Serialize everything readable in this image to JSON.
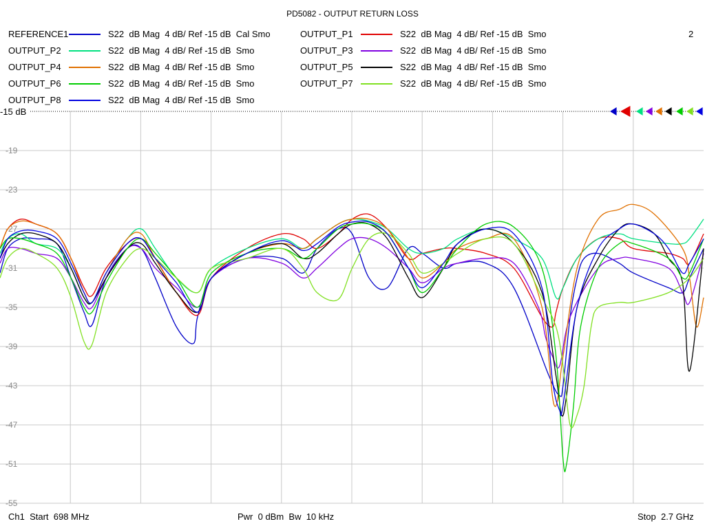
{
  "chart_data": {
    "type": "line",
    "title": "PD5082 - OUTPUT RETURN LOSS",
    "channel_number": "2",
    "ref_label": "-15 dB",
    "y_ticks": [
      "-15",
      "-19",
      "-23",
      "-27",
      "-31",
      "-35",
      "-39",
      "-43",
      "-47",
      "-51",
      "-55"
    ],
    "ylim": [
      -55,
      -15
    ],
    "xlim": [
      698,
      2700
    ],
    "x_unit": "MHz",
    "grid": true,
    "footer": {
      "start": "Ch1  Start  698 MHz",
      "mid": "Pwr  0 dBm  Bw  10 kHz",
      "stop": "Stop  2.7 GHz"
    },
    "series": [
      {
        "name": "REFERENCE1",
        "desc": "S22  dB Mag  4 dB/ Ref -15 dB  Cal Smo",
        "color": "#0000c8",
        "x": [
          698,
          720,
          757,
          800,
          860,
          900,
          937,
          960,
          1000,
          1060,
          1100,
          1140,
          1200,
          1248,
          1260,
          1300,
          1400,
          1500,
          1560,
          1600,
          1660,
          1700,
          1748,
          1800,
          1860,
          1900,
          1960,
          2000,
          2080,
          2160,
          2260,
          2290,
          2300,
          2320,
          2340,
          2360,
          2400,
          2460,
          2500,
          2600,
          2640,
          2660,
          2700
        ],
        "y": [
          -31.5,
          -29,
          -28,
          -28,
          -28.5,
          -32,
          -35.5,
          -36.8,
          -32,
          -29,
          -29,
          -32,
          -37,
          -38.7,
          -36,
          -32,
          -30,
          -30,
          -31.5,
          -29,
          -27,
          -27.5,
          -32,
          -33,
          -29,
          -29.5,
          -31,
          -30.5,
          -30.5,
          -33,
          -42,
          -44,
          -43,
          -36,
          -32,
          -30,
          -29.5,
          -30.5,
          -31.5,
          -33,
          -33.5,
          -32,
          -29
        ]
      },
      {
        "name": "OUTPUT_P1",
        "desc": "S22  dB Mag  4 dB/ Ref -15 dB  Smo",
        "color": "#e00000",
        "x": [
          698,
          720,
          757,
          800,
          860,
          900,
          937,
          960,
          1000,
          1060,
          1100,
          1140,
          1200,
          1260,
          1300,
          1400,
          1500,
          1560,
          1600,
          1660,
          1700,
          1748,
          1800,
          1860,
          1900,
          1960,
          2000,
          2080,
          2160,
          2240,
          2270,
          2280,
          2300,
          2340,
          2400,
          2460,
          2500,
          2600,
          2640,
          2660,
          2700
        ],
        "y": [
          -29,
          -27,
          -26,
          -26.5,
          -27.5,
          -30,
          -33,
          -33.8,
          -31,
          -28.5,
          -28,
          -30,
          -33.5,
          -35.8,
          -32,
          -29,
          -27.5,
          -28,
          -29,
          -27.5,
          -26,
          -25.5,
          -27,
          -30,
          -29.5,
          -29,
          -29,
          -29.5,
          -31,
          -36,
          -37,
          -35.5,
          -33,
          -30,
          -28,
          -28,
          -29,
          -29.5,
          -30,
          -30.5,
          -27.5
        ]
      },
      {
        "name": "OUTPUT_P2",
        "desc": "S22  dB Mag  4 dB/ Ref -15 dB  Smo",
        "color": "#00e080",
        "x": [
          698,
          720,
          757,
          800,
          860,
          900,
          937,
          960,
          1000,
          1060,
          1100,
          1140,
          1200,
          1260,
          1300,
          1400,
          1500,
          1560,
          1600,
          1660,
          1700,
          1748,
          1800,
          1860,
          1900,
          1960,
          2000,
          2080,
          2160,
          2240,
          2280,
          2300,
          2340,
          2400,
          2460,
          2500,
          2600,
          2640,
          2660,
          2700
        ],
        "y": [
          -29.5,
          -28,
          -27.5,
          -28.5,
          -29,
          -31,
          -34,
          -34.5,
          -31.5,
          -28,
          -27,
          -29,
          -32,
          -33.5,
          -31,
          -29,
          -28,
          -29,
          -28,
          -26.5,
          -26,
          -26.2,
          -27,
          -29,
          -29.5,
          -29,
          -28,
          -27,
          -28,
          -30,
          -34,
          -33,
          -30,
          -28,
          -27.5,
          -28,
          -28.5,
          -28.5,
          -28,
          -26
        ]
      },
      {
        "name": "OUTPUT_P3",
        "desc": "S22  dB Mag  4 dB/ Ref -15 dB  Smo",
        "color": "#8000e0",
        "x": [
          698,
          720,
          757,
          800,
          860,
          900,
          937,
          960,
          1000,
          1060,
          1100,
          1140,
          1200,
          1260,
          1300,
          1400,
          1500,
          1560,
          1600,
          1660,
          1700,
          1748,
          1800,
          1860,
          1900,
          1960,
          2000,
          2080,
          2160,
          2230,
          2250,
          2270,
          2290,
          2320,
          2400,
          2460,
          2500,
          2600,
          2640,
          2660,
          2700
        ],
        "y": [
          -30.5,
          -29,
          -29,
          -29.5,
          -30,
          -32,
          -34.5,
          -35,
          -32,
          -29,
          -29,
          -31,
          -33,
          -35,
          -32,
          -30,
          -30.5,
          -32,
          -31,
          -29,
          -28,
          -28,
          -29,
          -31,
          -32.5,
          -31,
          -30.5,
          -30,
          -30.5,
          -35,
          -38,
          -40,
          -41,
          -36,
          -31,
          -30,
          -30,
          -31,
          -33.5,
          -34.5,
          -29.5
        ]
      },
      {
        "name": "OUTPUT_P4",
        "desc": "S22  dB Mag  4 dB/ Ref -15 dB  Smo",
        "color": "#e07000",
        "x": [
          698,
          720,
          757,
          800,
          860,
          900,
          937,
          960,
          1000,
          1060,
          1100,
          1140,
          1200,
          1260,
          1300,
          1400,
          1500,
          1560,
          1600,
          1660,
          1700,
          1748,
          1800,
          1860,
          1900,
          1960,
          2000,
          2080,
          2160,
          2240,
          2275,
          2300,
          2340,
          2400,
          2460,
          2500,
          2560,
          2640,
          2660,
          2680,
          2700
        ],
        "y": [
          -29,
          -27,
          -26.2,
          -26.5,
          -27.5,
          -30,
          -33.5,
          -34.5,
          -31.5,
          -28,
          -27.5,
          -30,
          -33.5,
          -35.5,
          -32,
          -29.5,
          -28.5,
          -29,
          -28,
          -26.5,
          -26,
          -26,
          -27,
          -30,
          -32,
          -30.5,
          -29,
          -28,
          -28,
          -35,
          -45,
          -40,
          -31,
          -26,
          -25,
          -24.5,
          -25.5,
          -29,
          -32,
          -37,
          -34
        ]
      },
      {
        "name": "OUTPUT_P5",
        "desc": "S22  dB Mag  4 dB/ Ref -15 dB  Smo",
        "color": "#000000",
        "x": [
          698,
          720,
          757,
          800,
          860,
          900,
          937,
          960,
          1000,
          1060,
          1100,
          1140,
          1200,
          1260,
          1300,
          1400,
          1500,
          1560,
          1600,
          1660,
          1700,
          1748,
          1800,
          1860,
          1900,
          1960,
          2000,
          2080,
          2160,
          2240,
          2280,
          2296,
          2310,
          2340,
          2400,
          2460,
          2500,
          2560,
          2600,
          2640,
          2660,
          2700
        ],
        "y": [
          -30,
          -28.5,
          -27.5,
          -27.5,
          -28.5,
          -31,
          -34,
          -34.5,
          -32,
          -29,
          -28.5,
          -30.5,
          -33.5,
          -35.5,
          -32,
          -29.5,
          -28.5,
          -30,
          -29.5,
          -27.5,
          -26.5,
          -26.5,
          -28,
          -32,
          -34,
          -31,
          -28.5,
          -27,
          -28.5,
          -33.5,
          -42,
          -46,
          -44,
          -35,
          -30,
          -27,
          -26.5,
          -27.5,
          -30,
          -32.5,
          -41.5,
          -29
        ]
      },
      {
        "name": "OUTPUT_P6",
        "desc": "S22  dB Mag  4 dB/ Ref -15 dB  Smo",
        "color": "#00cc00",
        "x": [
          698,
          720,
          757,
          800,
          860,
          900,
          937,
          960,
          1000,
          1060,
          1100,
          1140,
          1200,
          1260,
          1300,
          1400,
          1500,
          1560,
          1600,
          1660,
          1700,
          1748,
          1800,
          1860,
          1900,
          1960,
          2000,
          2080,
          2160,
          2240,
          2280,
          2300,
          2310,
          2330,
          2350,
          2400,
          2460,
          2500,
          2600,
          2640,
          2660,
          2700
        ],
        "y": [
          -29,
          -28,
          -28,
          -28.5,
          -29.5,
          -32,
          -35,
          -35.5,
          -32.5,
          -29,
          -28,
          -29.5,
          -32,
          -35,
          -31.5,
          -29.5,
          -29,
          -30,
          -29,
          -27,
          -26.5,
          -26.5,
          -27.5,
          -31,
          -33.5,
          -31,
          -29,
          -26.5,
          -26.8,
          -31,
          -40,
          -50.5,
          -51,
          -45,
          -37,
          -31,
          -28.5,
          -28.5,
          -30,
          -32,
          -31.5,
          -28
        ]
      },
      {
        "name": "OUTPUT_P7",
        "desc": "S22  dB Mag  4 dB/ Ref -15 dB  Smo",
        "color": "#80e020",
        "x": [
          698,
          720,
          757,
          800,
          860,
          900,
          937,
          960,
          1000,
          1060,
          1100,
          1140,
          1200,
          1260,
          1300,
          1400,
          1500,
          1560,
          1600,
          1660,
          1700,
          1748,
          1800,
          1860,
          1900,
          1960,
          2000,
          2080,
          2160,
          2240,
          2280,
          2300,
          2320,
          2340,
          2360,
          2380,
          2400,
          2460,
          2500,
          2600,
          2660,
          2700
        ],
        "y": [
          -32,
          -30,
          -29,
          -29.5,
          -31,
          -34,
          -38.5,
          -38.8,
          -33.5,
          -30,
          -29,
          -30,
          -32,
          -33.5,
          -31,
          -30,
          -29,
          -31,
          -33.5,
          -34.2,
          -31,
          -28,
          -27.5,
          -29.5,
          -31.5,
          -30.5,
          -29.5,
          -28,
          -28.5,
          -34,
          -37,
          -41,
          -47,
          -46,
          -43,
          -37,
          -35,
          -34.5,
          -34.5,
          -33.5,
          -32,
          -30
        ]
      },
      {
        "name": "OUTPUT_P8",
        "desc": "S22  dB Mag  4 dB/ Ref -15 dB  Smo",
        "color": "#0000e0",
        "x": [
          698,
          720,
          757,
          800,
          860,
          900,
          937,
          960,
          1000,
          1060,
          1100,
          1140,
          1200,
          1260,
          1300,
          1400,
          1500,
          1560,
          1600,
          1660,
          1700,
          1748,
          1800,
          1860,
          1900,
          1960,
          2000,
          2080,
          2160,
          2240,
          2270,
          2290,
          2300,
          2340,
          2400,
          2460,
          2500,
          2560,
          2600,
          2640,
          2660,
          2700
        ],
        "y": [
          -30,
          -28,
          -27.2,
          -27.2,
          -28,
          -30.5,
          -33.5,
          -34.5,
          -31.5,
          -28.5,
          -28,
          -30,
          -32.5,
          -35.5,
          -32,
          -29.5,
          -28.2,
          -29.2,
          -28.5,
          -26.8,
          -26.3,
          -26.3,
          -27.5,
          -31,
          -33,
          -30.5,
          -28.5,
          -27,
          -27.5,
          -33,
          -42.5,
          -45.5,
          -45,
          -35,
          -29,
          -27,
          -26.5,
          -27.5,
          -29,
          -31.5,
          -30.5,
          -28
        ]
      }
    ]
  }
}
